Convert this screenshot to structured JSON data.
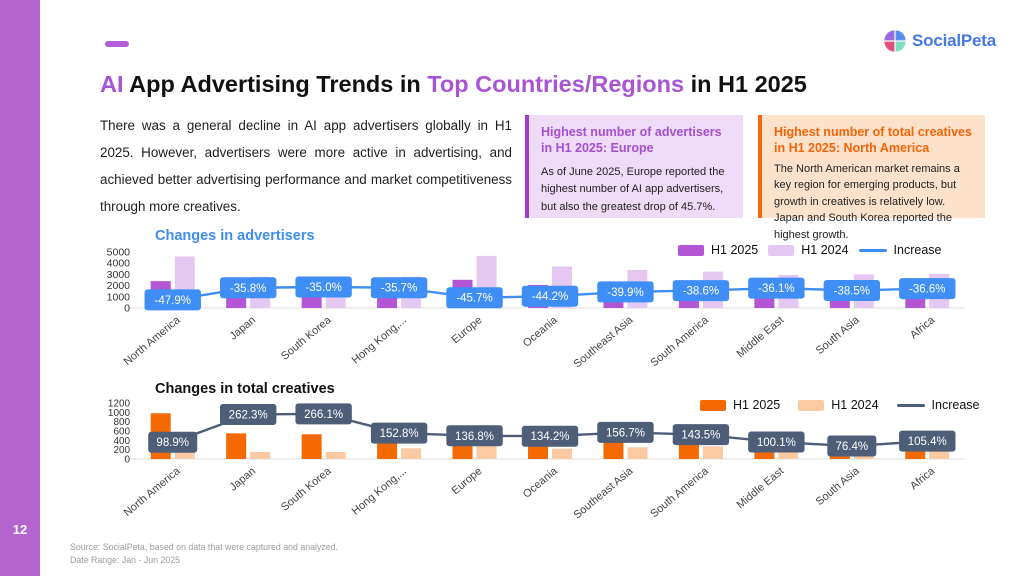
{
  "page": {
    "number": "12"
  },
  "logo": {
    "text": "SocialPeta"
  },
  "header": {
    "title_parts": [
      {
        "text": "AI",
        "accent": true
      },
      {
        "text": " App Advertising Trends in ",
        "accent": false
      },
      {
        "text": "Top Countries/Regions",
        "accent": true
      },
      {
        "text": " in H1 2025",
        "accent": false
      }
    ],
    "intro": "There was a general decline in AI app advertisers globally in H1 2025. However, advertisers were more active in advertising, and achieved better advertising performance and market competitiveness through more creatives."
  },
  "callouts": [
    {
      "title": "Highest number of advertisers in H1 2025: Europe",
      "body": "As of June 2025, Europe reported the highest number of AI app advertisers, but also the greatest drop of 45.7%.",
      "accent_color": "#a64fd0"
    },
    {
      "title": "Highest number of total creatives in H1 2025: North America",
      "body": "The North American market remains a key region for emerging products, but growth in creatives is relatively low. Japan and South Korea reported the highest growth.",
      "accent_color": "#f3640a"
    }
  ],
  "footer": {
    "source": "Source: SocialPeta, based on data that were captured and analyzed.",
    "date_range": "Date Range: Jan - Jun 2025"
  },
  "colors": {
    "sidebar": "#b464cf",
    "title_accent": "#a855d4",
    "advertisers_accent": "#3e8ef5",
    "creatives_accent": "#f56a00"
  },
  "chart_data": [
    {
      "type": "bar",
      "title": "Changes in advertisers",
      "title_color": "#3e8ef0",
      "categories": [
        "North America",
        "Japan",
        "South Korea",
        "Hong Kong,...",
        "Europe",
        "Oceania",
        "Southeast Asia",
        "South America",
        "Middle East",
        "South Asia",
        "Africa"
      ],
      "series": [
        {
          "name": "H1 2025",
          "color": "#b455d6",
          "values": [
            2400,
            1800,
            1790,
            1800,
            2520,
            2060,
            2040,
            2000,
            1890,
            1850,
            1930
          ]
        },
        {
          "name": "H1 2024",
          "color": "#e5c8f1",
          "values": [
            4600,
            2800,
            2760,
            2800,
            4650,
            3700,
            3400,
            3250,
            2950,
            3000,
            3050
          ]
        }
      ],
      "line": {
        "name": "Increase",
        "color": "#3e8ef5",
        "values": [
          -47.9,
          -35.8,
          -35.0,
          -35.7,
          -45.7,
          -44.2,
          -39.9,
          -38.6,
          -36.1,
          -38.5,
          -36.6
        ],
        "labels": [
          "-47.9%",
          "-35.8%",
          "-35.0%",
          "-35.7%",
          "-45.7%",
          "-44.2%",
          "-39.9%",
          "-38.6%",
          "-36.1%",
          "-38.5%",
          "-36.6%"
        ],
        "axis_min": -56,
        "axis_max": 0
      },
      "ylim": [
        0,
        5000
      ],
      "yticks": [
        0,
        1000,
        2000,
        3000,
        4000,
        5000
      ],
      "xlabel": "",
      "ylabel": "",
      "grid": false,
      "legend_position": "top-right"
    },
    {
      "type": "bar",
      "title": "Changes in total creatives",
      "title_color": "#111111",
      "categories": [
        "North America",
        "Japan",
        "South Korea",
        "Hong Kong,...",
        "Europe",
        "Oceania",
        "Southeast Asia",
        "South America",
        "Middle East",
        "South Asia",
        "Africa"
      ],
      "series": [
        {
          "name": "H1 2025",
          "color": "#f56a00",
          "values": [
            980,
            550,
            530,
            620,
            690,
            330,
            700,
            610,
            360,
            270,
            310
          ]
        },
        {
          "name": "H1 2024",
          "color": "#fbc9a2",
          "values": [
            230,
            150,
            150,
            230,
            310,
            220,
            250,
            270,
            270,
            220,
            270
          ]
        }
      ],
      "line": {
        "name": "Increase",
        "color": "#4e5d78",
        "values": [
          98.9,
          262.3,
          266.1,
          152.8,
          136.8,
          134.2,
          156.7,
          143.5,
          100.1,
          76.4,
          105.4
        ],
        "labels": [
          "98.9%",
          "262.3%",
          "266.1%",
          "152.8%",
          "136.8%",
          "134.2%",
          "156.7%",
          "143.5%",
          "100.1%",
          "76.4%",
          "105.4%"
        ],
        "axis_min": 0,
        "axis_max": 330
      },
      "ylim": [
        0,
        1200
      ],
      "yticks": [
        0,
        200,
        400,
        600,
        800,
        1000,
        1200
      ],
      "xlabel": "",
      "ylabel": "",
      "grid": false,
      "legend_position": "top-right"
    }
  ]
}
